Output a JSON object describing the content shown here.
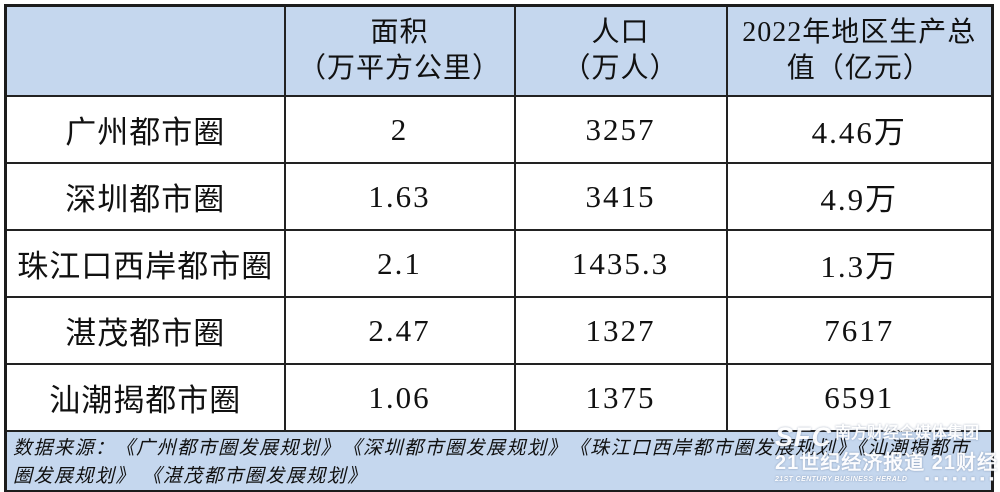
{
  "table": {
    "columns": {
      "area": {
        "line1": "面积",
        "line2": "（万平方公里）"
      },
      "population": {
        "line1": "人口",
        "line2": "（万人）"
      },
      "gdp": {
        "line1": "2022年地区生产总",
        "line2": "值（亿元）"
      }
    },
    "rows": [
      {
        "name": "广州都市圈",
        "area": "2",
        "population": "3257",
        "gdp": "4.46万"
      },
      {
        "name": "深圳都市圈",
        "area": "1.63",
        "population": "3415",
        "gdp": "4.9万"
      },
      {
        "name": "珠江口西岸都市圈",
        "area": "2.1",
        "population": "1435.3",
        "gdp": "1.3万"
      },
      {
        "name": "湛茂都市圈",
        "area": "2.47",
        "population": "1327",
        "gdp": "7617"
      },
      {
        "name": "汕潮揭都市圈",
        "area": "1.06",
        "population": "1375",
        "gdp": "6591"
      }
    ],
    "source_note": "数据来源：《广州都市圈发展规划》　《深圳都市圈发展规划》　《珠江口西岸都市圈发展规划》《汕潮揭都市圈发展规划》 《湛茂都市圈发展规划》"
  },
  "watermark": {
    "logo": "SFC",
    "org": "南方财经全媒体集团",
    "brands": "21世纪经济报道 21财经",
    "english": "21ST CENTURY BUSINESS HERALD",
    "blocks": "■ ■ ■ ■ ■ ■ ■ ■"
  },
  "colors": {
    "header_bg": "#c5d7ee",
    "row_bg": "#ffffff",
    "border": "#1e1e1e",
    "watermark_text": "#ffffff"
  },
  "chart_data": {
    "type": "table",
    "title": "",
    "columns": [
      "",
      "面积（万平方公里）",
      "人口（万人）",
      "2022年地区生产总值（亿元）"
    ],
    "rows": [
      [
        "广州都市圈",
        "2",
        "3257",
        "4.46万"
      ],
      [
        "深圳都市圈",
        "1.63",
        "3415",
        "4.9万"
      ],
      [
        "珠江口西岸都市圈",
        "2.1",
        "1435.3",
        "1.3万"
      ],
      [
        "湛茂都市圈",
        "2.47",
        "1327",
        "7617"
      ],
      [
        "汕潮揭都市圈",
        "1.06",
        "1375",
        "6591"
      ]
    ],
    "source": "数据来源：《广州都市圈发展规划》《深圳都市圈发展规划》《珠江口西岸都市圈发展规划》《汕潮揭都市圈发展规划》《湛茂都市圈发展规划》"
  }
}
